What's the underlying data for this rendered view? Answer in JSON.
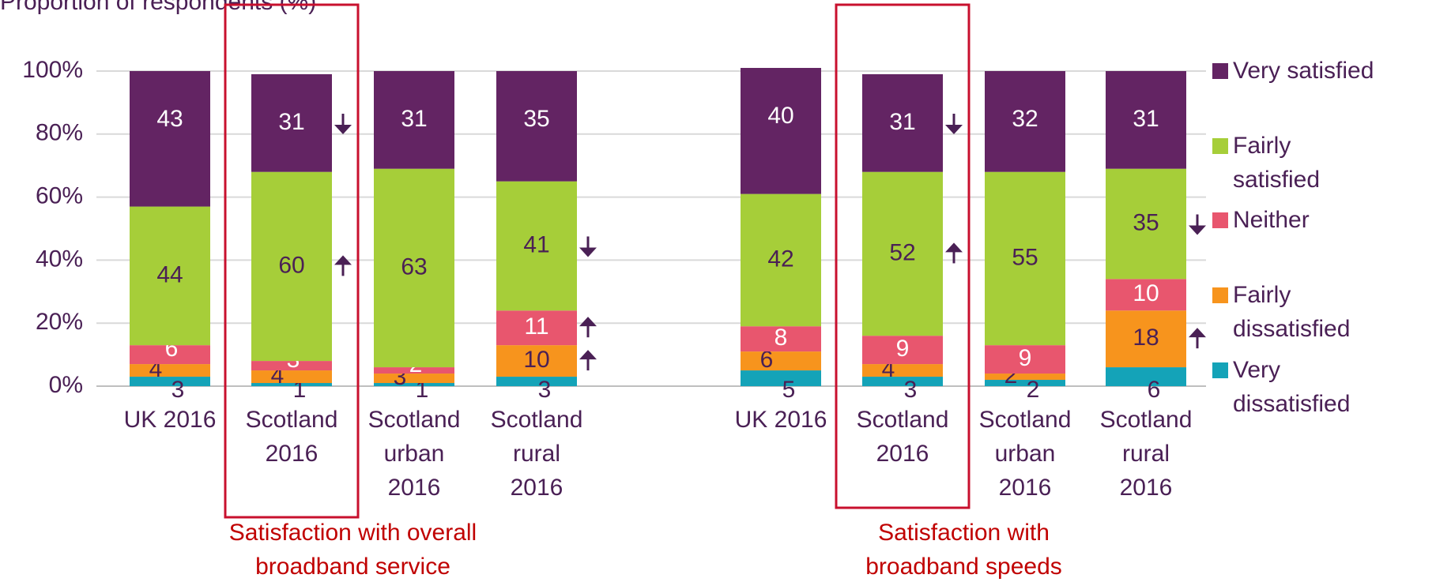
{
  "chart_data": {
    "type": "bar",
    "stacked": true,
    "y_label": "Proportion of respondents (%)",
    "categories": [
      "UK 2016",
      "Scotland\n2016",
      "Scotland\nurban\n2016",
      "Scotland\nrural\n2016",
      "UK 2016",
      "Scotland\n2016",
      "Scotland\nurban\n2016",
      "Scotland\nrural\n2016"
    ],
    "group_labels": [
      "Satisfaction with overall\nbroadband service",
      "Satisfaction with\nbroadband speeds"
    ],
    "highlight": [
      false,
      true,
      false,
      false,
      false,
      true,
      false,
      false
    ],
    "ylim": [
      0,
      100
    ],
    "yticks": [
      {
        "value": 0,
        "label": "0%"
      },
      {
        "value": 20,
        "label": "20%"
      },
      {
        "value": 40,
        "label": "40%"
      },
      {
        "value": 60,
        "label": "60%"
      },
      {
        "value": 80,
        "label": "80%"
      },
      {
        "value": 100,
        "label": "100%"
      }
    ],
    "grid": true,
    "legend": "right",
    "series": [
      {
        "name": "Very\ndissatisfied",
        "color": "#14a3b8",
        "values": [
          3,
          1,
          1,
          3,
          5,
          3,
          2,
          6
        ],
        "change": [
          null,
          null,
          null,
          null,
          null,
          null,
          null,
          null
        ]
      },
      {
        "name": "Fairly\ndissatisfied",
        "color": "#f7941d",
        "values": [
          4,
          4,
          3,
          10,
          6,
          4,
          2,
          18
        ],
        "change": [
          null,
          null,
          null,
          "up",
          null,
          null,
          null,
          "up"
        ]
      },
      {
        "name": "Neither",
        "color": "#e8566e",
        "values": [
          6,
          3,
          2,
          11,
          8,
          9,
          9,
          10
        ],
        "change": [
          null,
          null,
          null,
          "up",
          null,
          null,
          null,
          null
        ]
      },
      {
        "name": "Fairly\nsatisfied",
        "color": "#a6ce39",
        "values": [
          44,
          60,
          63,
          41,
          42,
          52,
          55,
          35
        ],
        "change": [
          null,
          "up",
          null,
          "down",
          null,
          "up",
          null,
          "down"
        ]
      },
      {
        "name": "Very satisfied",
        "color": "#632463",
        "values": [
          43,
          31,
          31,
          35,
          40,
          31,
          32,
          31
        ],
        "change": [
          null,
          "down",
          null,
          null,
          null,
          "down",
          null,
          null
        ]
      }
    ]
  }
}
